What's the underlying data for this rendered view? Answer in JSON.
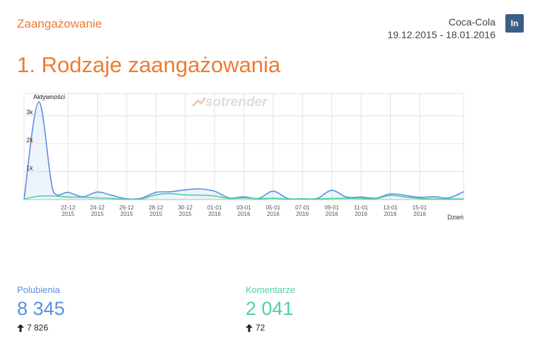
{
  "header": {
    "section": "Zaangażowanie",
    "brand": "Coca-Cola",
    "date_range": "19.12.2015 - 18.01.2016",
    "social_badge": "In"
  },
  "title": "1. Rodzaje zaangażowania",
  "watermark": "sotrender",
  "colors": {
    "accent": "#f07a32",
    "likes": "#5b8fe0",
    "comments": "#4fd29a",
    "linkedin": "#3b5e87"
  },
  "chart_data": {
    "type": "line",
    "ylabel": "Aktywności",
    "xlabel": "Dzień",
    "ytick_labels": [
      "1k",
      "2k",
      "3k"
    ],
    "ylim": [
      0,
      3800
    ],
    "x_tick_labels": [
      [
        "22-12",
        "2015"
      ],
      [
        "24-12",
        "2015"
      ],
      [
        "26-12",
        "2015"
      ],
      [
        "28-12",
        "2015"
      ],
      [
        "30-12",
        "2015"
      ],
      [
        "01-01",
        "2016"
      ],
      [
        "03-01",
        "2016"
      ],
      [
        "05-01",
        "2016"
      ],
      [
        "07-01",
        "2016"
      ],
      [
        "09-01",
        "2016"
      ],
      [
        "11-01",
        "2016"
      ],
      [
        "13-01",
        "2016"
      ],
      [
        "15-01",
        "2016"
      ]
    ],
    "dates": [
      "19-12",
      "20-12",
      "21-12",
      "22-12",
      "23-12",
      "24-12",
      "25-12",
      "26-12",
      "27-12",
      "28-12",
      "29-12",
      "30-12",
      "31-12",
      "01-01",
      "02-01",
      "03-01",
      "04-01",
      "05-01",
      "06-01",
      "07-01",
      "08-01",
      "09-01",
      "10-01",
      "11-01",
      "12-01",
      "13-01",
      "14-01",
      "15-01",
      "16-01",
      "17-01",
      "18-01"
    ],
    "series": [
      {
        "name": "Polubienia",
        "color": "#5b8fe0",
        "fill": true,
        "values": [
          20,
          3500,
          280,
          260,
          100,
          270,
          150,
          30,
          50,
          260,
          280,
          350,
          380,
          300,
          60,
          100,
          40,
          300,
          40,
          30,
          40,
          330,
          90,
          90,
          50,
          200,
          150,
          80,
          100,
          60,
          280
        ]
      },
      {
        "name": "Komentarze",
        "color": "#4fd29a",
        "fill": false,
        "values": [
          20,
          120,
          130,
          90,
          80,
          60,
          40,
          10,
          20,
          170,
          210,
          170,
          160,
          130,
          40,
          60,
          30,
          50,
          20,
          20,
          20,
          40,
          50,
          40,
          30,
          150,
          90,
          40,
          20,
          20,
          20
        ]
      }
    ]
  },
  "metrics": {
    "likes": {
      "label": "Polubienia",
      "value": "8 345",
      "delta": "7 826"
    },
    "comments": {
      "label": "Komentarze",
      "value": "2 041",
      "delta": "72"
    }
  }
}
